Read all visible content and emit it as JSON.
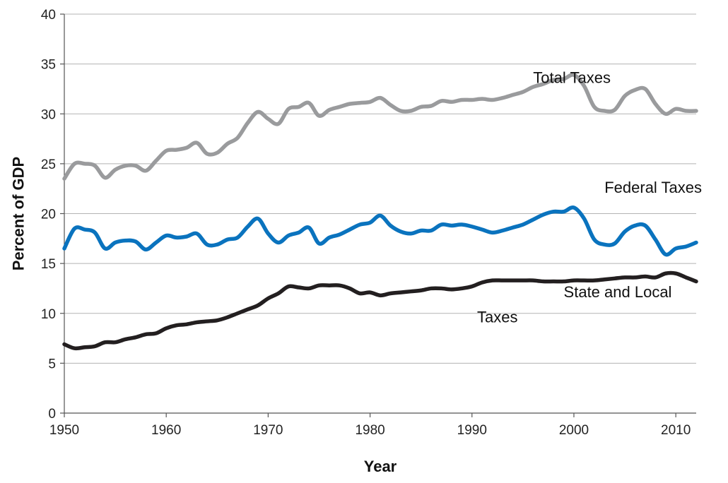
{
  "chart_data": {
    "type": "line",
    "xlabel": "Year",
    "ylabel": "Percent of GDP",
    "xlim": [
      1950,
      2012
    ],
    "ylim": [
      0,
      40
    ],
    "xticks": [
      1950,
      1960,
      1970,
      1980,
      1990,
      2000,
      2010
    ],
    "yticks": [
      0,
      5,
      10,
      15,
      20,
      25,
      30,
      35,
      40
    ],
    "grid": "horizontal",
    "x": [
      1950,
      1951,
      1952,
      1953,
      1954,
      1955,
      1956,
      1957,
      1958,
      1959,
      1960,
      1961,
      1962,
      1963,
      1964,
      1965,
      1966,
      1967,
      1968,
      1969,
      1970,
      1971,
      1972,
      1973,
      1974,
      1975,
      1976,
      1977,
      1978,
      1979,
      1980,
      1981,
      1982,
      1983,
      1984,
      1985,
      1986,
      1987,
      1988,
      1989,
      1990,
      1991,
      1992,
      1993,
      1994,
      1995,
      1996,
      1997,
      1998,
      1999,
      2000,
      2001,
      2002,
      2003,
      2004,
      2005,
      2006,
      2007,
      2008,
      2009,
      2010,
      2011,
      2012
    ],
    "series": [
      {
        "name": "Total Taxes",
        "color": "#9a9b9d",
        "values": [
          23.5,
          25.0,
          25.0,
          24.8,
          23.6,
          24.4,
          24.8,
          24.8,
          24.3,
          25.3,
          26.3,
          26.4,
          26.6,
          27.1,
          26.0,
          26.1,
          27.0,
          27.6,
          29.1,
          30.2,
          29.5,
          29.0,
          30.5,
          30.7,
          31.1,
          29.8,
          30.4,
          30.7,
          31.0,
          31.1,
          31.2,
          31.6,
          30.9,
          30.3,
          30.3,
          30.7,
          30.8,
          31.3,
          31.2,
          31.4,
          31.4,
          31.5,
          31.4,
          31.6,
          31.9,
          32.2,
          32.7,
          33.0,
          33.4,
          33.5,
          33.9,
          32.8,
          30.7,
          30.3,
          30.4,
          31.8,
          32.4,
          32.5,
          31.0,
          30.0,
          30.5,
          30.3,
          30.3
        ]
      },
      {
        "name": "Federal Taxes",
        "color": "#0a73be",
        "values": [
          16.5,
          18.5,
          18.4,
          18.1,
          16.5,
          17.1,
          17.3,
          17.2,
          16.4,
          17.1,
          17.8,
          17.6,
          17.7,
          18.0,
          16.9,
          16.9,
          17.4,
          17.6,
          18.7,
          19.5,
          18.0,
          17.1,
          17.8,
          18.1,
          18.6,
          17.0,
          17.6,
          17.9,
          18.4,
          18.9,
          19.1,
          19.8,
          18.8,
          18.2,
          18.0,
          18.3,
          18.3,
          18.9,
          18.8,
          18.9,
          18.7,
          18.4,
          18.1,
          18.3,
          18.6,
          18.9,
          19.4,
          19.9,
          20.2,
          20.2,
          20.6,
          19.5,
          17.4,
          16.9,
          17.0,
          18.2,
          18.8,
          18.8,
          17.4,
          15.9,
          16.5,
          16.7,
          17.1
        ]
      },
      {
        "name": "State and Local Taxes",
        "color": "#231f20",
        "values": [
          6.9,
          6.5,
          6.6,
          6.7,
          7.1,
          7.1,
          7.4,
          7.6,
          7.9,
          8.0,
          8.5,
          8.8,
          8.9,
          9.1,
          9.2,
          9.3,
          9.6,
          10.0,
          10.4,
          10.8,
          11.5,
          12.0,
          12.7,
          12.6,
          12.5,
          12.8,
          12.8,
          12.8,
          12.5,
          12.0,
          12.1,
          11.8,
          12.0,
          12.1,
          12.2,
          12.3,
          12.5,
          12.5,
          12.4,
          12.5,
          12.7,
          13.1,
          13.3,
          13.3,
          13.3,
          13.3,
          13.3,
          13.2,
          13.2,
          13.2,
          13.3,
          13.3,
          13.3,
          13.4,
          13.5,
          13.6,
          13.6,
          13.7,
          13.6,
          14.0,
          14.0,
          13.6,
          13.2
        ]
      }
    ],
    "annotations": [
      {
        "text": "Total Taxes",
        "x": 1996,
        "y": 33.1
      },
      {
        "text": "Federal Taxes",
        "x": 2003,
        "y": 22.1
      },
      {
        "text": "State and Local",
        "x": 1999,
        "y": 11.6
      },
      {
        "text": "Taxes",
        "x": 1990.5,
        "y": 9.1
      }
    ]
  }
}
